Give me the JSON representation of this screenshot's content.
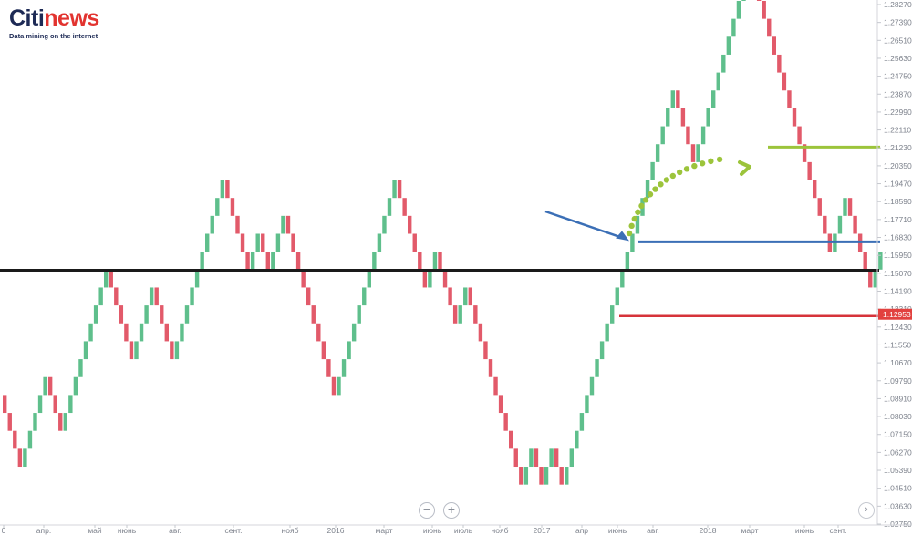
{
  "logo": {
    "part1": "Citi",
    "part2": "news",
    "tagline": "Data mining on the internet"
  },
  "controls": {
    "zoom_out": "−",
    "zoom_in": "+",
    "next": "›"
  },
  "colors": {
    "up": "#5fbf8c",
    "down": "#e25a6a",
    "support": "#1a1a1a",
    "blue_level": "#3b6fb6",
    "green_level": "#9cc43b",
    "red_level": "#d6333a",
    "price_tag": "#e2413f"
  },
  "chart_data": {
    "type": "renko",
    "box_size": 0.0088,
    "start_price": 1.0909,
    "bricks": [
      -1,
      -1,
      -1,
      -1,
      1,
      1,
      1,
      1,
      1,
      -1,
      -1,
      -1,
      1,
      1,
      1,
      1,
      1,
      1,
      1,
      1,
      1,
      -1,
      -1,
      -1,
      -1,
      -1,
      1,
      1,
      1,
      1,
      -1,
      -1,
      -1,
      -1,
      1,
      1,
      1,
      1,
      1,
      1,
      1,
      1,
      1,
      1,
      -1,
      -1,
      -1,
      -1,
      -1,
      1,
      1,
      -1,
      -1,
      1,
      1,
      1,
      -1,
      -1,
      -1,
      -1,
      -1,
      -1,
      -1,
      -1,
      -1,
      -1,
      1,
      1,
      1,
      1,
      1,
      1,
      1,
      1,
      1,
      1,
      1,
      1,
      -1,
      -1,
      -1,
      -1,
      -1,
      -1,
      1,
      1,
      -1,
      -1,
      -1,
      -1,
      1,
      1,
      -1,
      -1,
      -1,
      -1,
      -1,
      -1,
      -1,
      -1,
      -1,
      -1,
      -1,
      1,
      1,
      -1,
      -1,
      1,
      1,
      -1,
      -1,
      1,
      1,
      1,
      1,
      1,
      1,
      1,
      1,
      1,
      1,
      1,
      1,
      1,
      1,
      1,
      1,
      1,
      1,
      1,
      1,
      1,
      1,
      -1,
      -1,
      -1,
      -1,
      1,
      1,
      1,
      1,
      1,
      1,
      1,
      1,
      1,
      1,
      1,
      -1,
      -1,
      -1,
      -1,
      -1,
      -1,
      -1,
      -1,
      -1,
      -1,
      -1,
      -1,
      -1,
      -1,
      -1,
      -1,
      1,
      1,
      1,
      -1,
      -1,
      -1,
      -1,
      -1,
      1,
      1
    ],
    "yaxis": {
      "min": 1.0275,
      "max": 1.2827,
      "ticks": [
        "1.28270",
        "1.27390",
        "1.26510",
        "1.25630",
        "1.24750",
        "1.23870",
        "1.22990",
        "1.22110",
        "1.21230",
        "1.20350",
        "1.19470",
        "1.18590",
        "1.17710",
        "1.16830",
        "1.15950",
        "1.15070",
        "1.14190",
        "1.13310",
        "1.12430",
        "1.11550",
        "1.10670",
        "1.09790",
        "1.08910",
        "1.08030",
        "1.07150",
        "1.06270",
        "1.05390",
        "1.04510",
        "1.03630",
        "1.02750"
      ]
    },
    "xaxis_labels": [
      "0",
      "апр.",
      "май",
      "июнь",
      "авг.",
      "сент.",
      "нояб",
      "2016",
      "март",
      "июнь",
      "июль",
      "нояб",
      "2017",
      "апр",
      "июнь",
      "авг.",
      "2018",
      "март",
      "июнь",
      "сент."
    ],
    "last_price_label": "1.12953",
    "levels": [
      {
        "name": "black",
        "price": 1.1522
      },
      {
        "name": "blue",
        "price": 1.1661
      },
      {
        "name": "red",
        "price": 1.1297
      },
      {
        "name": "green",
        "price": 1.2127
      }
    ]
  }
}
